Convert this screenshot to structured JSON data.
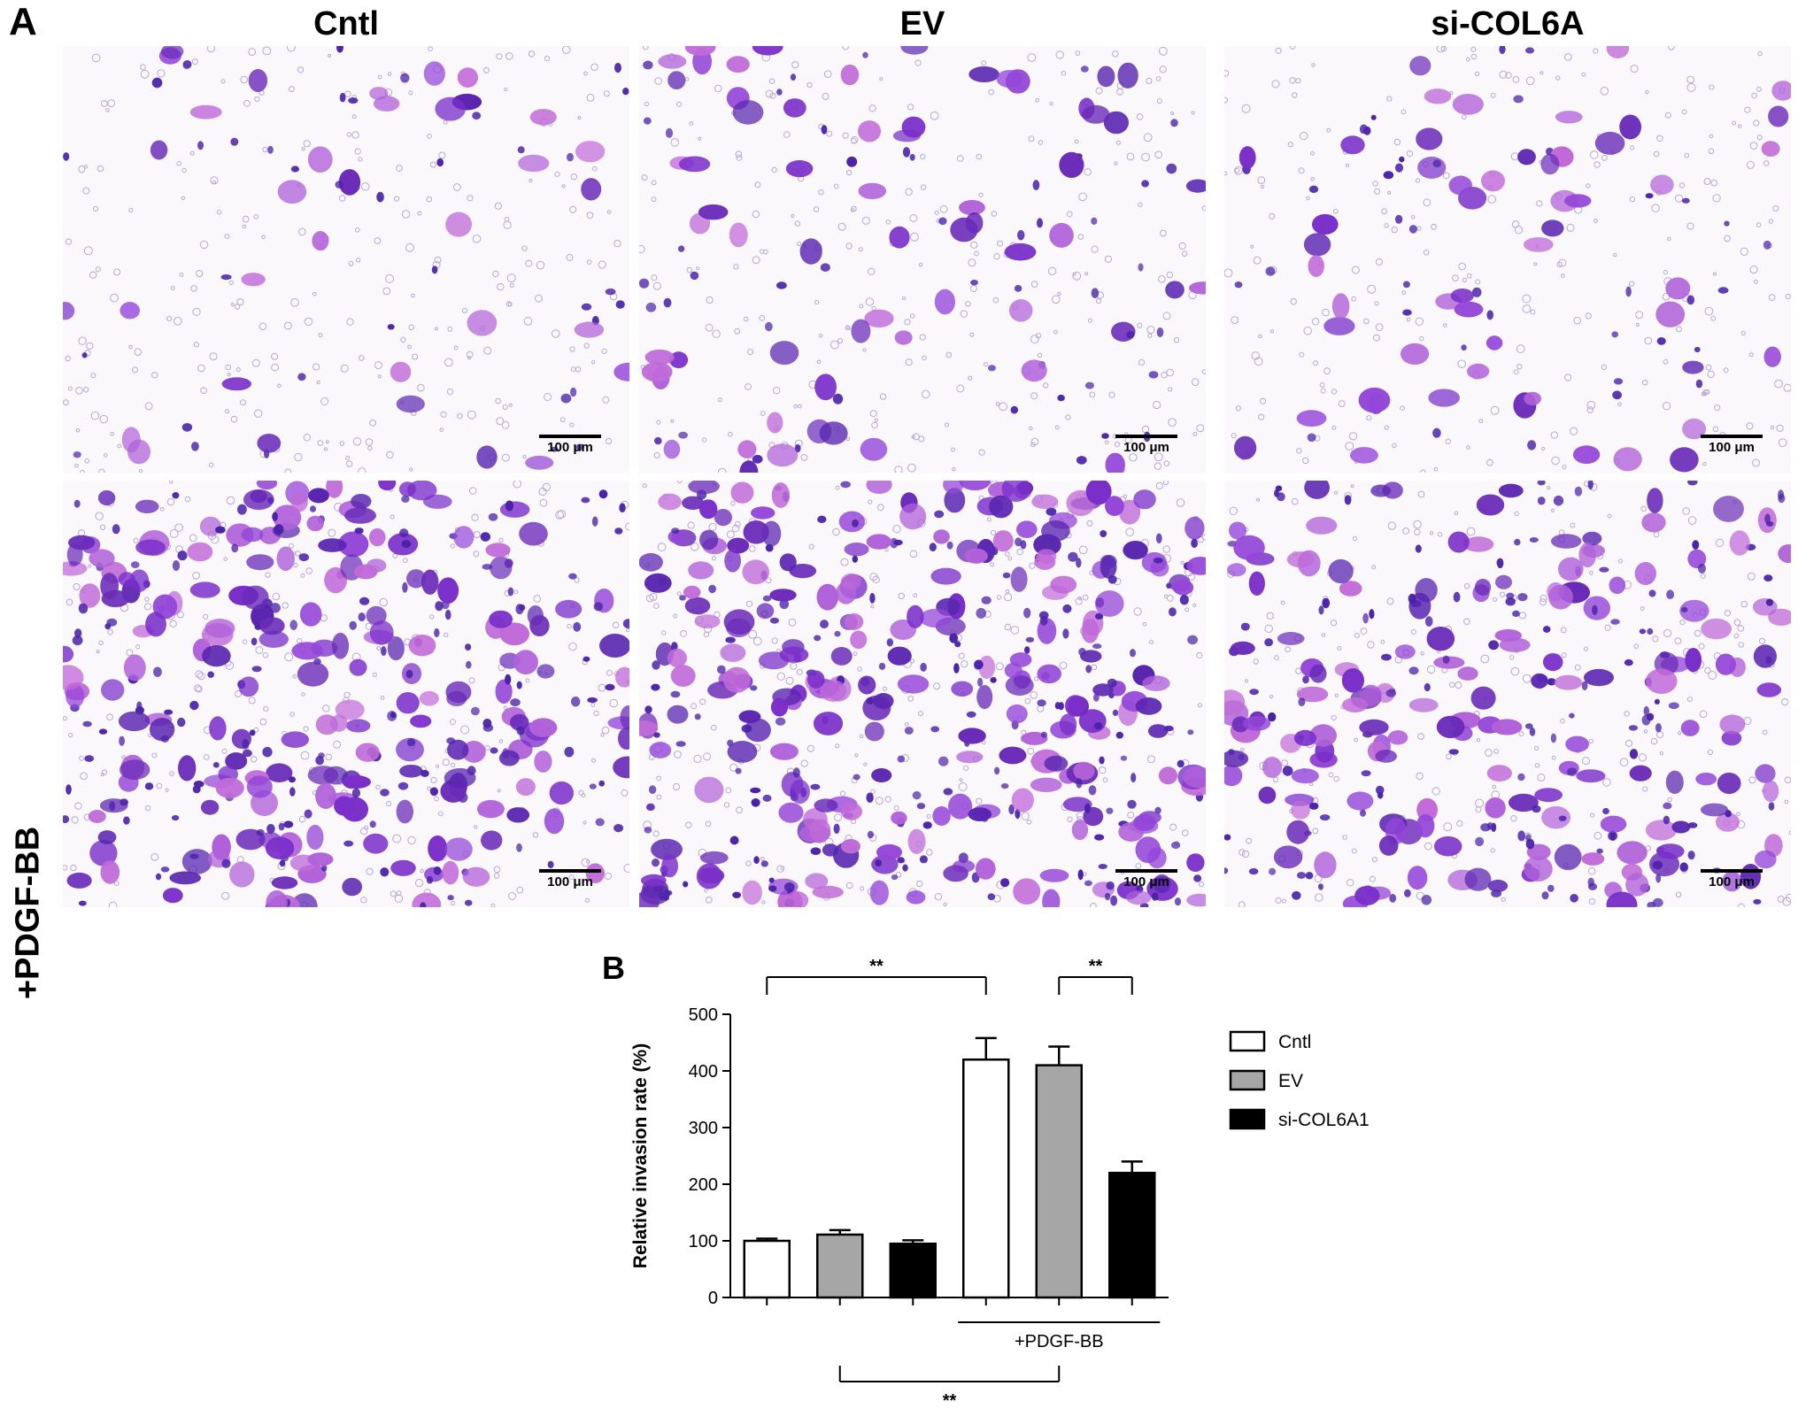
{
  "panel_a": {
    "letter": "A",
    "columns": [
      "Cntl",
      "EV",
      "si-COL6A"
    ],
    "row_label": "+PDGF-BB",
    "scale_bar": "100 μm",
    "stain_color": "#8a3fd0"
  },
  "panel_b": {
    "letter": "B"
  },
  "chart_data": {
    "type": "bar",
    "categories": [
      "Cntl",
      "EV",
      "si-COL6A1",
      "Cntl",
      "EV",
      "si-COL6A1"
    ],
    "group_label": "+PDGF-BB",
    "ylabel": "Relative invasion rate (%)",
    "xlabel": "",
    "ylim": [
      0,
      500
    ],
    "yticks": [
      0,
      100,
      200,
      300,
      400,
      500
    ],
    "values": [
      100,
      111,
      95,
      420,
      410,
      220
    ],
    "errors": [
      4,
      8,
      6,
      38,
      33,
      20
    ],
    "colors": [
      "#ffffff",
      "#a6a6a6",
      "#000000",
      "#ffffff",
      "#a6a6a6",
      "#000000"
    ],
    "legend": [
      {
        "label": "Cntl",
        "color": "#ffffff"
      },
      {
        "label": "EV",
        "color": "#a6a6a6"
      },
      {
        "label": "si-COL6A1",
        "color": "#000000"
      }
    ],
    "legend_position": "right",
    "significance": [
      {
        "from": 0,
        "to": 3,
        "label": "**",
        "side": "top"
      },
      {
        "from": 4,
        "to": 5,
        "label": "**",
        "side": "top"
      },
      {
        "from": 1,
        "to": 4,
        "label": "**",
        "side": "bottom"
      }
    ]
  }
}
